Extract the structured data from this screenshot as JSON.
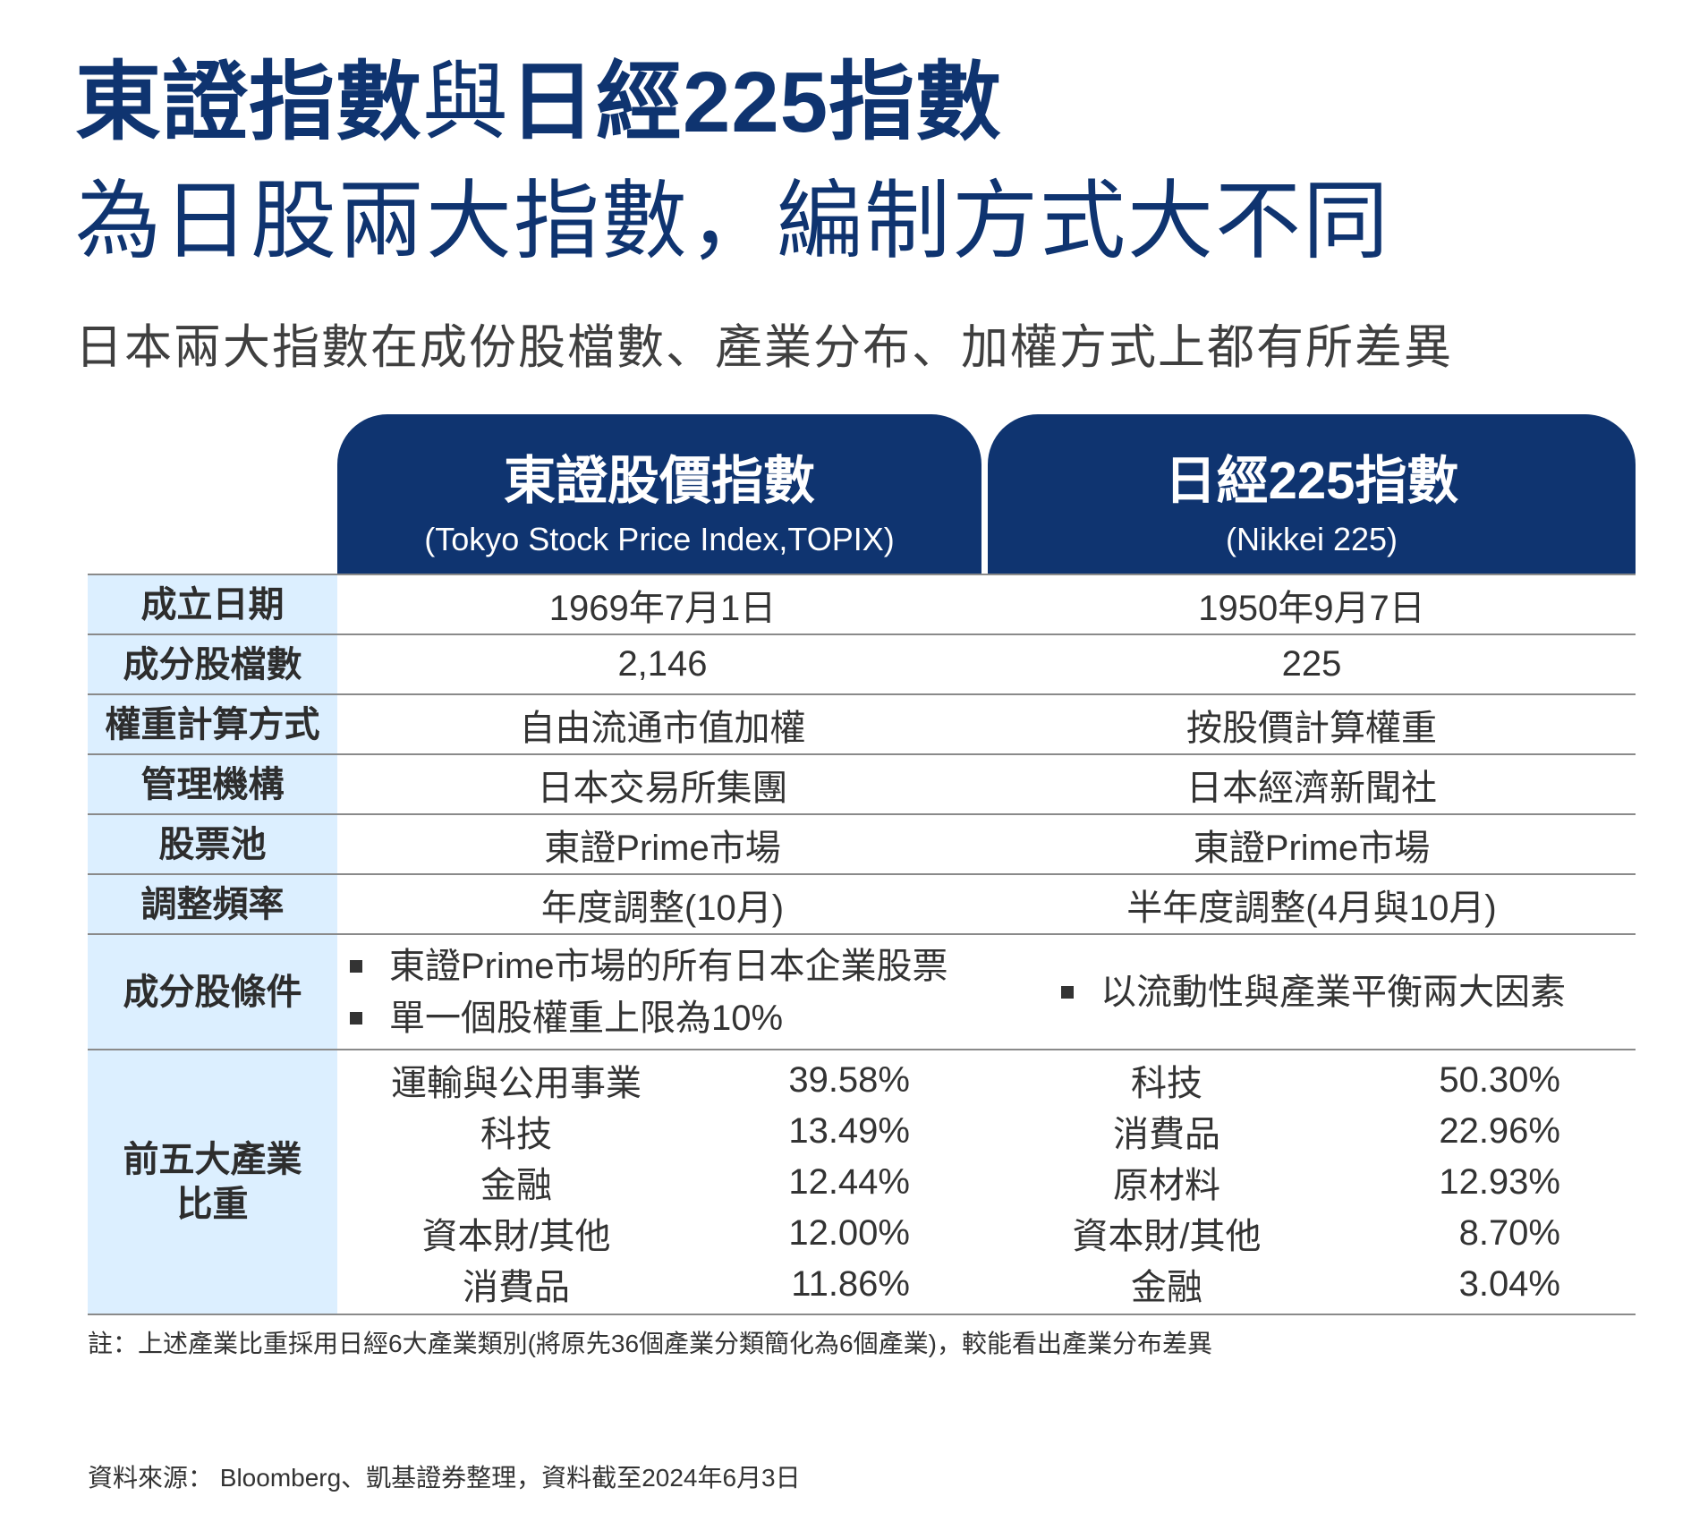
{
  "title": {
    "line1_part1": "東證指數",
    "line1_part2": "與",
    "line1_part3": "日經225指數",
    "line2": "為日股兩大指數，編制方式大不同"
  },
  "subtitle": "日本兩大指數在成份股檔數、產業分布、加權方式上都有所差異",
  "columns": [
    {
      "name": "東證股價指數",
      "sub": "(Tokyo Stock Price Index,TOPIX)"
    },
    {
      "name": "日經225指數",
      "sub": "(Nikkei 225)"
    }
  ],
  "rows": [
    {
      "label": "成立日期",
      "v1": "1969年7月1日",
      "v2": "1950年9月7日"
    },
    {
      "label": "成分股檔數",
      "v1": "2,146",
      "v2": "225"
    },
    {
      "label": "權重計算方式",
      "v1": "自由流通市值加權",
      "v2": "按股價計算權重"
    },
    {
      "label": "管理機構",
      "v1": "日本交易所集團",
      "v2": "日本經濟新聞社"
    },
    {
      "label": "股票池",
      "v1": "東證Prime市場",
      "v2": "東證Prime市場"
    },
    {
      "label": "調整頻率",
      "v1": "年度調整(10月)",
      "v2": "半年度調整(4月與10月)"
    }
  ],
  "conditions": {
    "label": "成分股條件",
    "topix": [
      "東證Prime市場的所有日本企業股票",
      "單一個股權重上限為10%"
    ],
    "nikkei": [
      "以流動性與產業平衡兩大因素"
    ]
  },
  "industries": {
    "label_line1": "前五大產業",
    "label_line2": "比重",
    "topix": [
      {
        "name": "運輸與公用事業",
        "pct": "39.58%"
      },
      {
        "name": "科技",
        "pct": "13.49%"
      },
      {
        "name": "金融",
        "pct": "12.44%"
      },
      {
        "name": "資本財/其他",
        "pct": "12.00%"
      },
      {
        "name": "消費品",
        "pct": "11.86%"
      }
    ],
    "nikkei": [
      {
        "name": "科技",
        "pct": "50.30%"
      },
      {
        "name": "消費品",
        "pct": "22.96%"
      },
      {
        "name": "原材料",
        "pct": "12.93%"
      },
      {
        "name": "資本財/其他",
        "pct": "8.70%"
      },
      {
        "name": "金融",
        "pct": "3.04%"
      }
    ]
  },
  "note": "註：上述產業比重採用日經6大產業類別(將原先36個產業分類簡化為6個產業)，較能看出產業分布差異",
  "source": "資料來源： Bloomberg、凱基證券整理，資料截至2024年6月3日",
  "colors": {
    "navy": "#0f3470",
    "label_bg": "#dcefff"
  }
}
